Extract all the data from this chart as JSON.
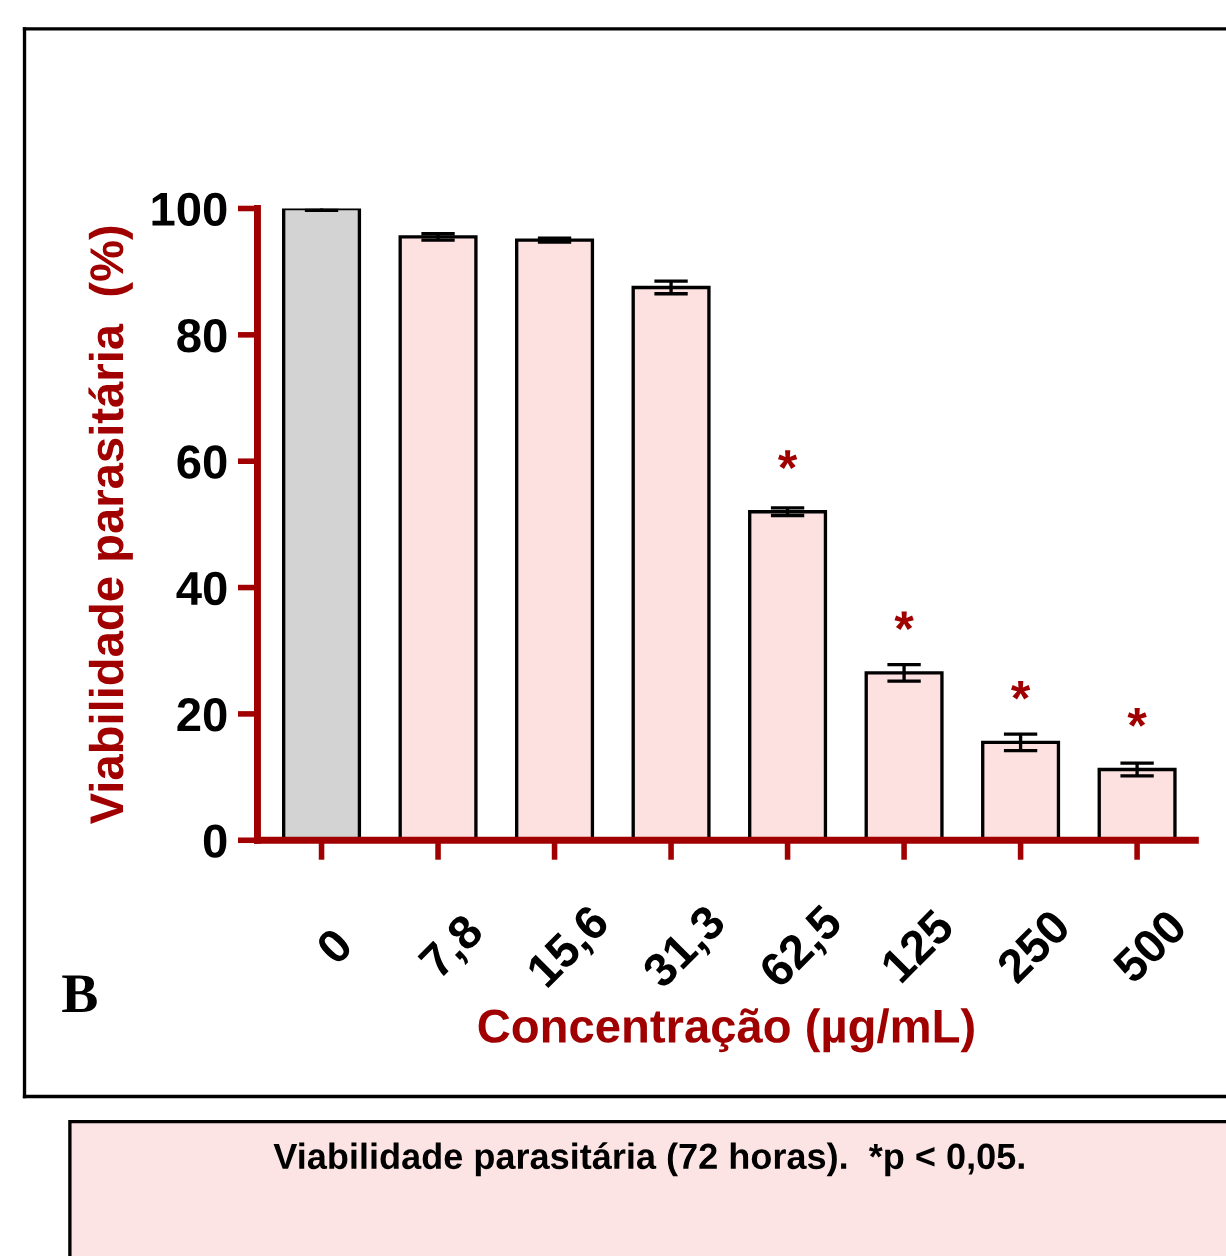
{
  "chart_data": {
    "type": "bar",
    "xlabel": "Concentração (µg/mL)",
    "ylabel": "Viabilidade parasitária  (%)",
    "categories": [
      "0",
      "7,8",
      "15,6",
      "31,3",
      "62,5",
      "125",
      "250",
      "500"
    ],
    "values": [
      100,
      95.5,
      95,
      87.5,
      52,
      26.5,
      15.5,
      11.2
    ],
    "errors": [
      0.3,
      0.5,
      0.3,
      1,
      0.6,
      1.3,
      1.3,
      1
    ],
    "colors": [
      "#d3d3d3",
      "#fde0e0",
      "#fde0e0",
      "#fde0e0",
      "#fde0e0",
      "#fde0e0",
      "#fde0e0",
      "#fde0e0"
    ],
    "ylim": [
      0,
      100
    ],
    "yticks": [
      0,
      20,
      40,
      60,
      80,
      100
    ],
    "grid": false,
    "legend": false,
    "annotations": [
      {
        "text": "*",
        "x": "62,5",
        "y": 52
      },
      {
        "text": "*",
        "x": "125",
        "y": 26.5
      },
      {
        "text": "*",
        "x": "250",
        "y": 15.5
      },
      {
        "text": "*",
        "x": "500",
        "y": 11.2
      },
      "B",
      "Viabilidade parasitária (72 horas).  *p < 0,05."
    ]
  }
}
